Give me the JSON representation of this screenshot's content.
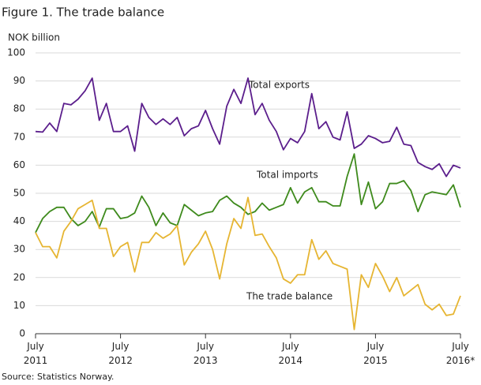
{
  "chart_data": {
    "type": "line",
    "title": "Figure 1. The trade balance",
    "y_label": "NOK billion",
    "source": "Source: Statistics Norway.",
    "categories": [
      "July 2011",
      null,
      null,
      null,
      null,
      null,
      null,
      null,
      null,
      null,
      null,
      null,
      "July 2012",
      null,
      null,
      null,
      null,
      null,
      null,
      null,
      null,
      null,
      null,
      null,
      "July 2013",
      null,
      null,
      null,
      null,
      null,
      null,
      null,
      null,
      null,
      null,
      null,
      "July 2014",
      null,
      null,
      null,
      null,
      null,
      null,
      null,
      null,
      null,
      null,
      null,
      "July 2015",
      null,
      null,
      null,
      null,
      null,
      null,
      null,
      null,
      null,
      null,
      null,
      "July 2016*"
    ],
    "series": [
      {
        "name": "Total exports",
        "color": "#5b1e8c",
        "values": [
          72,
          71.8,
          75,
          72,
          82,
          81.5,
          83.5,
          86.5,
          91,
          76,
          82,
          72,
          72,
          74,
          65,
          82,
          77,
          74.5,
          76.5,
          74.5,
          77,
          70.5,
          73,
          74,
          79.5,
          73,
          67.5,
          81,
          87,
          82,
          91,
          78,
          82,
          76,
          72,
          65.5,
          69.5,
          68,
          72,
          85.5,
          73,
          75.5,
          70,
          69,
          79,
          66,
          67.5,
          70.5,
          69.5,
          68,
          68.5,
          73.5,
          67.5,
          67,
          61,
          59.5,
          58.5,
          60.5,
          56,
          60,
          59
        ]
      },
      {
        "name": "Total imports",
        "color": "#3e8a1c",
        "values": [
          36,
          41,
          43.5,
          45,
          45,
          41,
          38.5,
          40,
          43.5,
          38,
          44.5,
          44.5,
          41,
          41.5,
          43,
          49,
          45,
          38.5,
          43,
          39.5,
          38.5,
          46,
          44,
          42,
          43,
          43.5,
          47.5,
          49,
          46.5,
          45,
          42.5,
          43.5,
          46.5,
          44,
          45,
          46,
          52,
          46.5,
          50.5,
          52,
          47,
          47,
          45.5,
          45.5,
          56,
          64,
          46,
          54,
          44.5,
          47,
          53.5,
          53.5,
          54.5,
          51,
          43.5,
          49.5,
          50.5,
          50,
          49.5,
          53,
          45
        ]
      },
      {
        "name": "The trade balance",
        "color": "#e6b532",
        "values": [
          36,
          31,
          31,
          27,
          36.5,
          40,
          44.5,
          46,
          47.5,
          37.5,
          37.5,
          27.5,
          31,
          32.5,
          22,
          32.5,
          32.5,
          36,
          34,
          35.5,
          38.5,
          24.5,
          29,
          32,
          36.5,
          30,
          19.5,
          32,
          41,
          37.5,
          48.5,
          35,
          35.5,
          31,
          27,
          19.5,
          18,
          21,
          21,
          33.5,
          26.5,
          29.5,
          25,
          24,
          23,
          1.5,
          21,
          16.5,
          25,
          20.5,
          15,
          20,
          13.5,
          15.5,
          17.5,
          10.5,
          8.5,
          10.5,
          6.5,
          7,
          13.5
        ]
      }
    ],
    "ylim": [
      0,
      100
    ],
    "yticks": [
      0,
      10,
      20,
      30,
      40,
      50,
      60,
      70,
      80,
      90,
      100
    ],
    "grid": true
  }
}
